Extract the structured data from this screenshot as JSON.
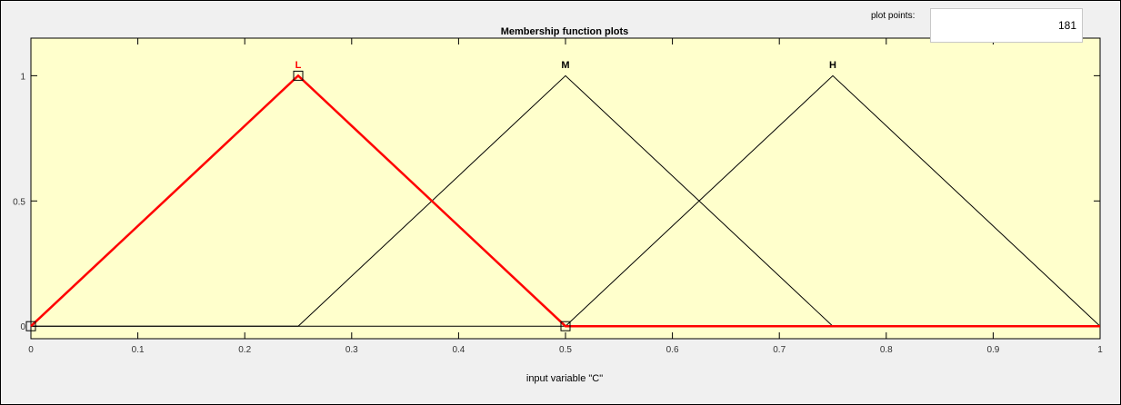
{
  "panel": {
    "title": "Membership function plots",
    "plot_points_label": "plot points:",
    "plot_points_value": "181"
  },
  "colors": {
    "plot_background": "#ffffcc",
    "selected": "#ff0000",
    "unselected": "#000000"
  },
  "chart_data": {
    "type": "line",
    "title": "Membership function plots",
    "xlabel": "input variable \"C\"",
    "ylabel": "",
    "xlim": [
      0,
      1
    ],
    "ylim": [
      -0.05,
      1.15
    ],
    "xticks": [
      0,
      0.1,
      0.2,
      0.3,
      0.4,
      0.5,
      0.6,
      0.7,
      0.8,
      0.9,
      1
    ],
    "xtick_labels": [
      "0",
      "0.1",
      "0.2",
      "0.3",
      "0.4",
      "0.5",
      "0.6",
      "0.7",
      "0.8",
      "0.9",
      "1"
    ],
    "yticks": [
      0,
      0.5,
      1
    ],
    "ytick_labels": [
      "0",
      "0.5",
      "1"
    ],
    "grid": false,
    "series": [
      {
        "name": "L",
        "params": [
          0,
          0.25,
          0.5
        ],
        "selected": true
      },
      {
        "name": "M",
        "params": [
          0.25,
          0.5,
          0.75
        ],
        "selected": false
      },
      {
        "name": "H",
        "params": [
          0.5,
          0.75,
          1
        ],
        "selected": false
      }
    ]
  }
}
